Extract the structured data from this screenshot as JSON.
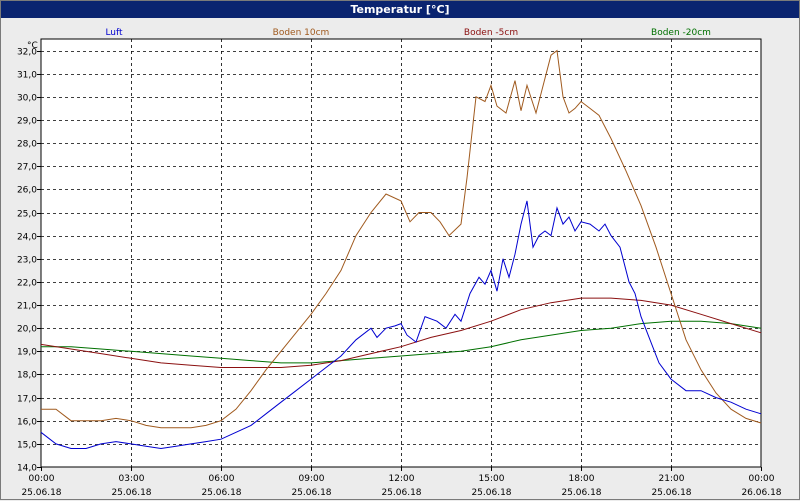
{
  "window": {
    "title": "Temperatur [°C]"
  },
  "chart_data": {
    "type": "line",
    "title": "Temperatur [°C]",
    "ylabel": "°C",
    "ylim": [
      14.0,
      32.5
    ],
    "yticks": [
      "14,0",
      "15,0",
      "16,0",
      "17,0",
      "18,0",
      "19,0",
      "20,0",
      "21,0",
      "22,0",
      "23,0",
      "24,0",
      "25,0",
      "26,0",
      "27,0",
      "28,0",
      "29,0",
      "30,0",
      "31,0",
      "32,0"
    ],
    "xlim": [
      0,
      24
    ],
    "xticks": [
      {
        "h": 0,
        "time": "00:00",
        "date": "25.06.18"
      },
      {
        "h": 3,
        "time": "03:00",
        "date": "25.06.18"
      },
      {
        "h": 6,
        "time": "06:00",
        "date": "25.06.18"
      },
      {
        "h": 9,
        "time": "09:00",
        "date": "25.06.18"
      },
      {
        "h": 12,
        "time": "12:00",
        "date": "25.06.18"
      },
      {
        "h": 15,
        "time": "15:00",
        "date": "25.06.18"
      },
      {
        "h": 18,
        "time": "18:00",
        "date": "25.06.18"
      },
      {
        "h": 21,
        "time": "21:00",
        "date": "25.06.18"
      },
      {
        "h": 24,
        "time": "00:00",
        "date": "26.06.18"
      }
    ],
    "grid": true,
    "legend_position": "top",
    "series": [
      {
        "name": "Luft",
        "color": "#0000d0",
        "x": [
          0,
          0.5,
          1,
          1.5,
          2,
          2.5,
          3,
          3.5,
          4,
          4.5,
          5,
          5.5,
          6,
          6.5,
          7,
          7.5,
          8,
          8.5,
          9,
          9.5,
          10,
          10.5,
          11,
          11.2,
          11.5,
          11.8,
          12.0,
          12.2,
          12.5,
          12.8,
          13.2,
          13.5,
          13.8,
          14.0,
          14.3,
          14.6,
          14.8,
          15.0,
          15.2,
          15.4,
          15.6,
          15.8,
          16.0,
          16.2,
          16.4,
          16.6,
          16.8,
          17.0,
          17.2,
          17.4,
          17.6,
          17.8,
          18.0,
          18.3,
          18.6,
          18.8,
          19.0,
          19.3,
          19.6,
          19.8,
          20.0,
          20.3,
          20.6,
          21.0,
          21.5,
          22.0,
          22.5,
          23.0,
          23.5,
          24.0
        ],
        "values": [
          15.5,
          15.0,
          14.8,
          14.8,
          15.0,
          15.1,
          15.0,
          14.9,
          14.8,
          14.9,
          15.0,
          15.1,
          15.2,
          15.5,
          15.8,
          16.3,
          16.8,
          17.3,
          17.8,
          18.3,
          18.8,
          19.5,
          20.0,
          19.6,
          20.0,
          20.1,
          20.2,
          19.7,
          19.4,
          20.5,
          20.3,
          20.0,
          20.6,
          20.3,
          21.5,
          22.2,
          21.9,
          22.5,
          21.6,
          23.0,
          22.2,
          23.2,
          24.5,
          25.5,
          23.5,
          24.0,
          24.2,
          24.0,
          25.2,
          24.5,
          24.8,
          24.2,
          24.6,
          24.5,
          24.2,
          24.5,
          24.0,
          23.5,
          22.0,
          21.5,
          20.5,
          19.5,
          18.5,
          17.8,
          17.3,
          17.3,
          17.0,
          16.8,
          16.5,
          16.3
        ]
      },
      {
        "name": "Boden 10cm",
        "color": "#a05a1e",
        "x": [
          0,
          0.5,
          1,
          1.5,
          2,
          2.5,
          3,
          3.5,
          4,
          4.5,
          5,
          5.5,
          6,
          6.5,
          7,
          7.5,
          8,
          8.5,
          9,
          9.5,
          10,
          10.5,
          11,
          11.5,
          12,
          12.3,
          12.6,
          13,
          13.3,
          13.6,
          14.0,
          14.2,
          14.5,
          14.8,
          15.0,
          15.2,
          15.5,
          15.8,
          16.0,
          16.2,
          16.5,
          16.8,
          17.0,
          17.2,
          17.4,
          17.6,
          17.8,
          18.0,
          18.3,
          18.6,
          19.0,
          19.5,
          20.0,
          20.5,
          21.0,
          21.5,
          22.0,
          22.5,
          23.0,
          23.5,
          24.0
        ],
        "values": [
          16.5,
          16.5,
          16.0,
          16.0,
          16.0,
          16.1,
          16.0,
          15.8,
          15.7,
          15.7,
          15.7,
          15.8,
          16.0,
          16.5,
          17.3,
          18.2,
          19.0,
          19.8,
          20.6,
          21.5,
          22.5,
          24.0,
          25.0,
          25.8,
          25.5,
          24.6,
          25.0,
          25.0,
          24.6,
          24.0,
          24.5,
          26.5,
          30.0,
          29.8,
          30.5,
          29.6,
          29.3,
          30.7,
          29.4,
          30.5,
          29.3,
          30.8,
          31.8,
          32.0,
          30.0,
          29.3,
          29.5,
          29.8,
          29.5,
          29.2,
          28.2,
          26.8,
          25.3,
          23.5,
          21.5,
          19.5,
          18.2,
          17.2,
          16.5,
          16.1,
          15.9
        ]
      },
      {
        "name": "Boden -5cm",
        "color": "#8b1010",
        "x": [
          0,
          1,
          2,
          3,
          4,
          5,
          6,
          7,
          8,
          9,
          10,
          11,
          12,
          13,
          14,
          15,
          16,
          17,
          18,
          19,
          20,
          21,
          22,
          23,
          24
        ],
        "values": [
          19.3,
          19.1,
          18.9,
          18.7,
          18.5,
          18.4,
          18.3,
          18.3,
          18.3,
          18.4,
          18.6,
          18.9,
          19.2,
          19.6,
          19.9,
          20.3,
          20.8,
          21.1,
          21.3,
          21.3,
          21.2,
          21.0,
          20.6,
          20.2,
          19.8
        ]
      },
      {
        "name": "Boden -20cm",
        "color": "#007000",
        "x": [
          0,
          1,
          2,
          3,
          4,
          5,
          6,
          7,
          8,
          9,
          10,
          11,
          12,
          13,
          14,
          15,
          16,
          17,
          18,
          19,
          20,
          21,
          22,
          23,
          24
        ],
        "values": [
          19.2,
          19.2,
          19.1,
          19.0,
          18.9,
          18.8,
          18.7,
          18.6,
          18.5,
          18.5,
          18.6,
          18.7,
          18.8,
          18.9,
          19.0,
          19.2,
          19.5,
          19.7,
          19.9,
          20.0,
          20.2,
          20.3,
          20.3,
          20.2,
          20.0
        ]
      }
    ]
  }
}
